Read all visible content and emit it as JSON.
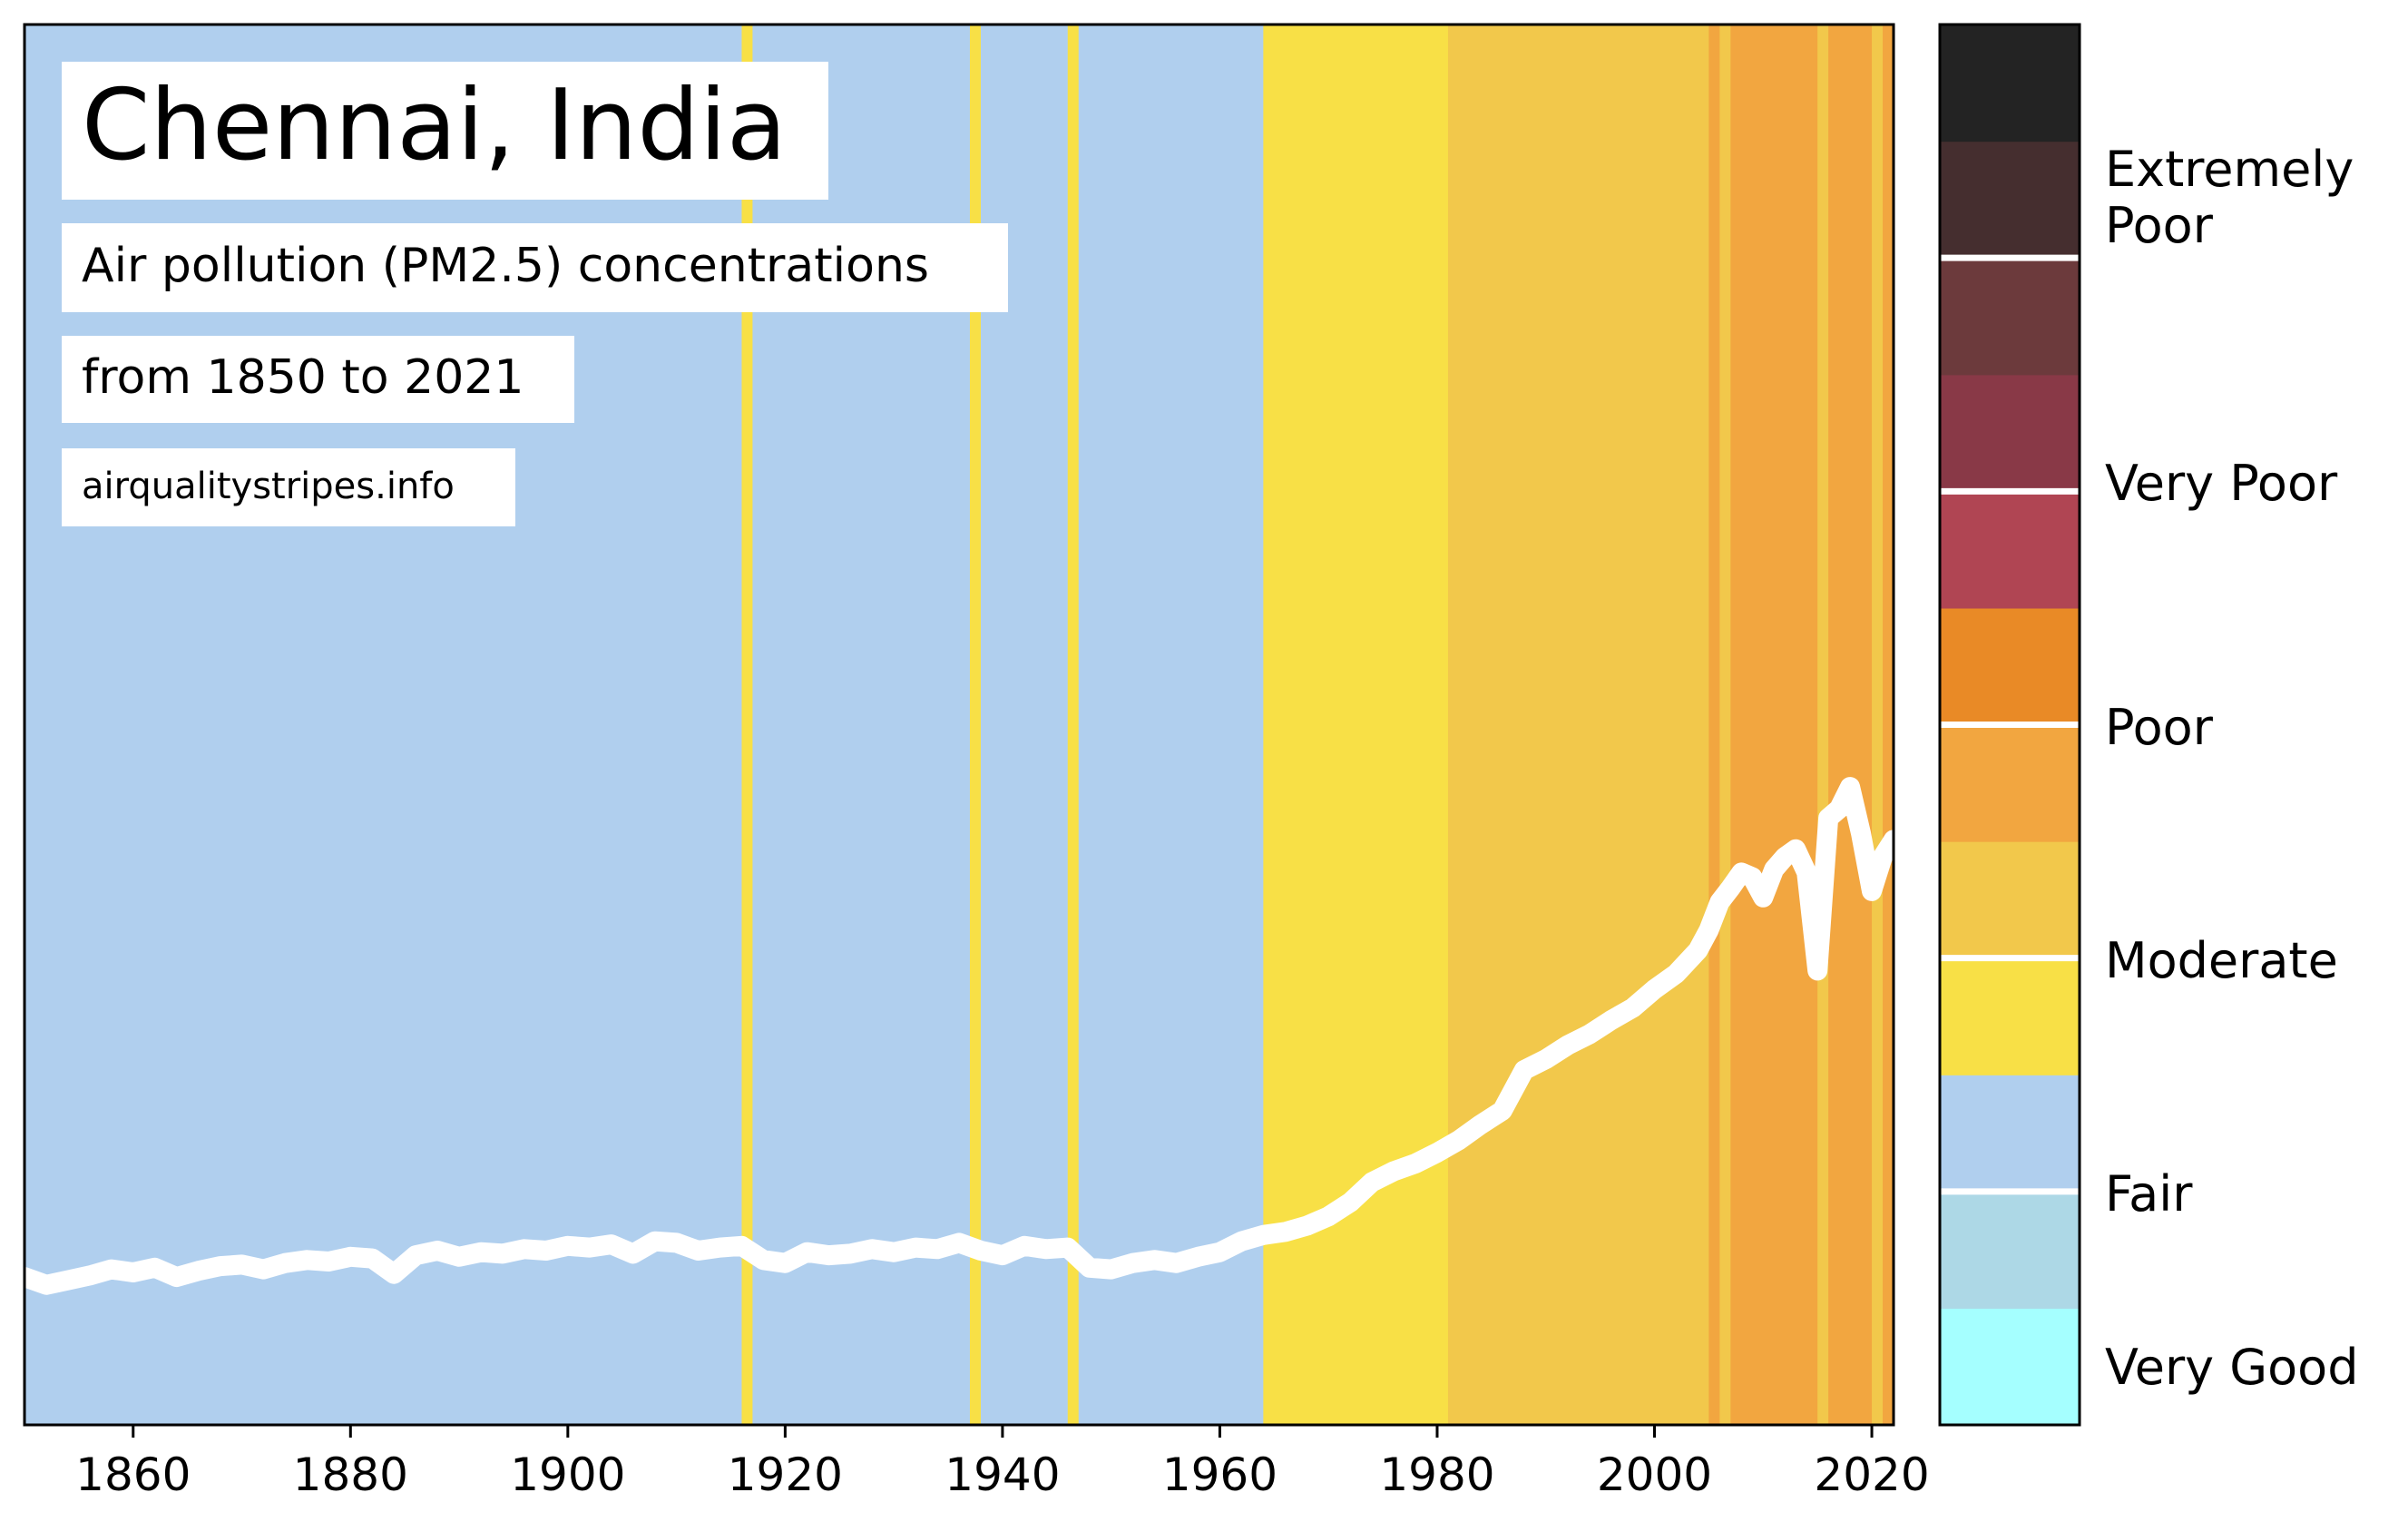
{
  "chart_data": {
    "type": "area",
    "title": "Chennai, India",
    "subtitle_line1": "Air pollution (PM2.5) concentrations",
    "subtitle_line2": "from 1850 to 2021",
    "source": "airqualitystripes.info",
    "xlabel": "",
    "ylabel": "",
    "xlim": [
      1850,
      2022
    ],
    "ylim": [
      0,
      90
    ],
    "x_ticks": [
      1860,
      1880,
      1900,
      1920,
      1940,
      1960,
      1980,
      2000,
      2020
    ],
    "grid": false,
    "stripe_colors": {
      "fair": "#b0cfee",
      "moderate_low": "#f8e046",
      "moderate_high": "#f2c84b",
      "poor_low": "#f2a640",
      "poor_high": "#e98a26"
    },
    "stripes": [
      {
        "start": 1850,
        "end": 1916,
        "color": "#b0cfee"
      },
      {
        "start": 1916,
        "end": 1917,
        "color": "#f8e046"
      },
      {
        "start": 1917,
        "end": 1937,
        "color": "#b0cfee"
      },
      {
        "start": 1937,
        "end": 1938,
        "color": "#f8e046"
      },
      {
        "start": 1938,
        "end": 1946,
        "color": "#b0cfee"
      },
      {
        "start": 1946,
        "end": 1947,
        "color": "#f8e046"
      },
      {
        "start": 1947,
        "end": 1964,
        "color": "#b0cfee"
      },
      {
        "start": 1964,
        "end": 1981,
        "color": "#f8e046"
      },
      {
        "start": 1981,
        "end": 2005,
        "color": "#f2c84b"
      },
      {
        "start": 2005,
        "end": 2006,
        "color": "#f2a640"
      },
      {
        "start": 2006,
        "end": 2007,
        "color": "#f2c84b"
      },
      {
        "start": 2007,
        "end": 2015,
        "color": "#f2a640"
      },
      {
        "start": 2015,
        "end": 2016,
        "color": "#f2c84b"
      },
      {
        "start": 2016,
        "end": 2020,
        "color": "#f2a640"
      },
      {
        "start": 2020,
        "end": 2021,
        "color": "#f2c84b"
      },
      {
        "start": 2021,
        "end": 2022,
        "color": "#f2a640"
      }
    ],
    "series": [
      {
        "color": "#ffffff",
        "x": [
          1850,
          1852,
          1854,
          1856,
          1858,
          1860,
          1862,
          1864,
          1866,
          1868,
          1870,
          1872,
          1874,
          1876,
          1878,
          1880,
          1882,
          1884,
          1886,
          1888,
          1890,
          1892,
          1894,
          1896,
          1898,
          1900,
          1902,
          1904,
          1906,
          1908,
          1910,
          1912,
          1914,
          1916,
          1918,
          1920,
          1922,
          1924,
          1926,
          1928,
          1930,
          1932,
          1934,
          1936,
          1938,
          1940,
          1942,
          1944,
          1946,
          1948,
          1950,
          1952,
          1954,
          1956,
          1958,
          1960,
          1962,
          1964,
          1966,
          1968,
          1970,
          1972,
          1974,
          1976,
          1978,
          1980,
          1982,
          1984,
          1986,
          1988,
          1990,
          1992,
          1994,
          1996,
          1998,
          2000,
          2002,
          2004,
          2005,
          2006,
          2007,
          2008,
          2009,
          2010,
          2011,
          2012,
          2013,
          2014,
          2015,
          2016,
          2017,
          2018,
          2019,
          2020,
          2021,
          2022
        ],
        "y": [
          9.5,
          9.0,
          9.3,
          9.6,
          10.0,
          9.8,
          10.1,
          9.5,
          9.9,
          10.2,
          10.3,
          10.0,
          10.4,
          10.6,
          10.5,
          10.8,
          10.7,
          9.7,
          10.9,
          11.2,
          10.8,
          11.1,
          11.0,
          11.3,
          11.2,
          11.5,
          11.4,
          11.6,
          11.0,
          11.8,
          11.7,
          11.2,
          11.4,
          11.5,
          10.6,
          10.4,
          11.1,
          10.9,
          11.0,
          11.3,
          11.1,
          11.4,
          11.3,
          11.7,
          11.2,
          10.9,
          11.5,
          11.3,
          11.4,
          10.1,
          10.0,
          10.4,
          10.6,
          10.4,
          10.8,
          11.1,
          11.8,
          12.2,
          12.4,
          12.8,
          13.4,
          14.3,
          15.6,
          16.3,
          16.8,
          17.5,
          18.3,
          19.3,
          20.2,
          22.8,
          23.5,
          24.4,
          25.1,
          26.0,
          26.8,
          28.0,
          29.0,
          30.5,
          31.8,
          33.6,
          34.5,
          35.5,
          35.2,
          33.9,
          35.7,
          36.5,
          37.0,
          35.5,
          29.2,
          39.0,
          39.6,
          41.0,
          38.0,
          34.3,
          36.5,
          37.6
        ]
      }
    ],
    "colorbar": {
      "label_texts": {
        "extremely_poor_line1": "Extremely",
        "extremely_poor_line2": "Poor",
        "very_poor": "Very Poor",
        "poor": "Poor",
        "moderate": "Moderate",
        "fair": "Fair",
        "very_good": "Very Good"
      },
      "segments": [
        {
          "color": "#a5ffff"
        },
        {
          "color": "#add8e6"
        },
        {
          "color": "#b0cfee"
        },
        {
          "color": "#f8e046"
        },
        {
          "color": "#f2c84b"
        },
        {
          "color": "#f2a640"
        },
        {
          "color": "#e98a26"
        },
        {
          "color": "#b04553"
        },
        {
          "color": "#893947"
        },
        {
          "color": "#6c3a3c"
        },
        {
          "color": "#452e2f"
        },
        {
          "color": "#232323"
        }
      ],
      "separators_after_segment": [
        1,
        3,
        5,
        7,
        9
      ]
    }
  }
}
